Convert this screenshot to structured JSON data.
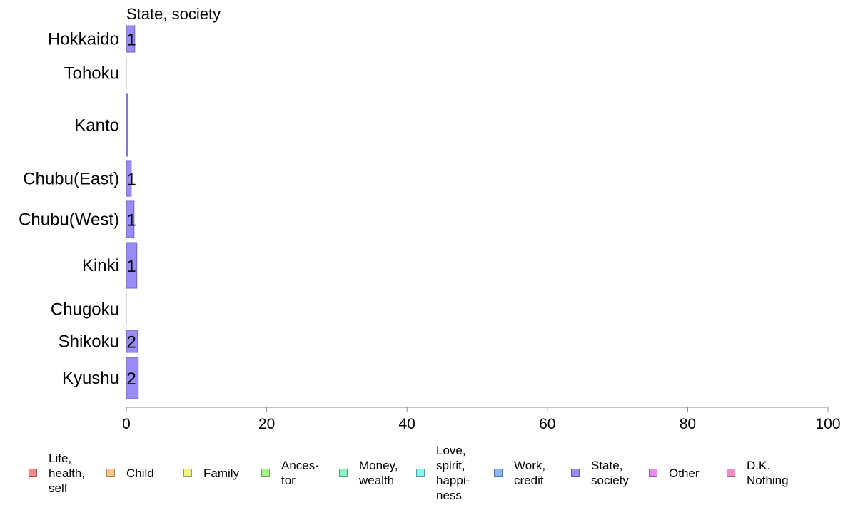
{
  "chart_data": {
    "type": "bar",
    "orientation": "horizontal",
    "panel_title": "State, society",
    "categories": [
      "Hokkaido",
      "Tohoku",
      "Kanto",
      "Chubu(East)",
      "Chubu(West)",
      "Kinki",
      "Chugoku",
      "Shikoku",
      "Kyushu"
    ],
    "values": [
      1.2,
      0,
      0.2,
      0.7,
      1.1,
      1.5,
      0,
      1.6,
      1.7
    ],
    "data_labels": [
      "1",
      "",
      "",
      "1",
      "1",
      "1",
      "",
      "2",
      "2"
    ],
    "xlim": [
      0,
      100
    ],
    "xticks": [
      "0",
      "20",
      "40",
      "60",
      "80",
      "100"
    ],
    "bar_color": "#9a8cf7",
    "bar_stroke": "#6f5fd6",
    "legend": [
      {
        "label": "Life,\nhealth,\nself",
        "color": "#f88a87"
      },
      {
        "label": "Child",
        "color": "#f8c98a"
      },
      {
        "label": "Family",
        "color": "#eef58a"
      },
      {
        "label": "Ances-\ntor",
        "color": "#a8f58a"
      },
      {
        "label": "Money,\nwealth",
        "color": "#8af5c3"
      },
      {
        "label": "Love,\nspirit,\nhappi-\nness",
        "color": "#8af5f5"
      },
      {
        "label": "Work,\ncredit",
        "color": "#8ab6f5"
      },
      {
        "label": "State,\nsociety",
        "color": "#9a8cf7"
      },
      {
        "label": "Other",
        "color": "#ea8af5"
      },
      {
        "label": "D.K.\nNothing",
        "color": "#f58ac9"
      }
    ]
  }
}
